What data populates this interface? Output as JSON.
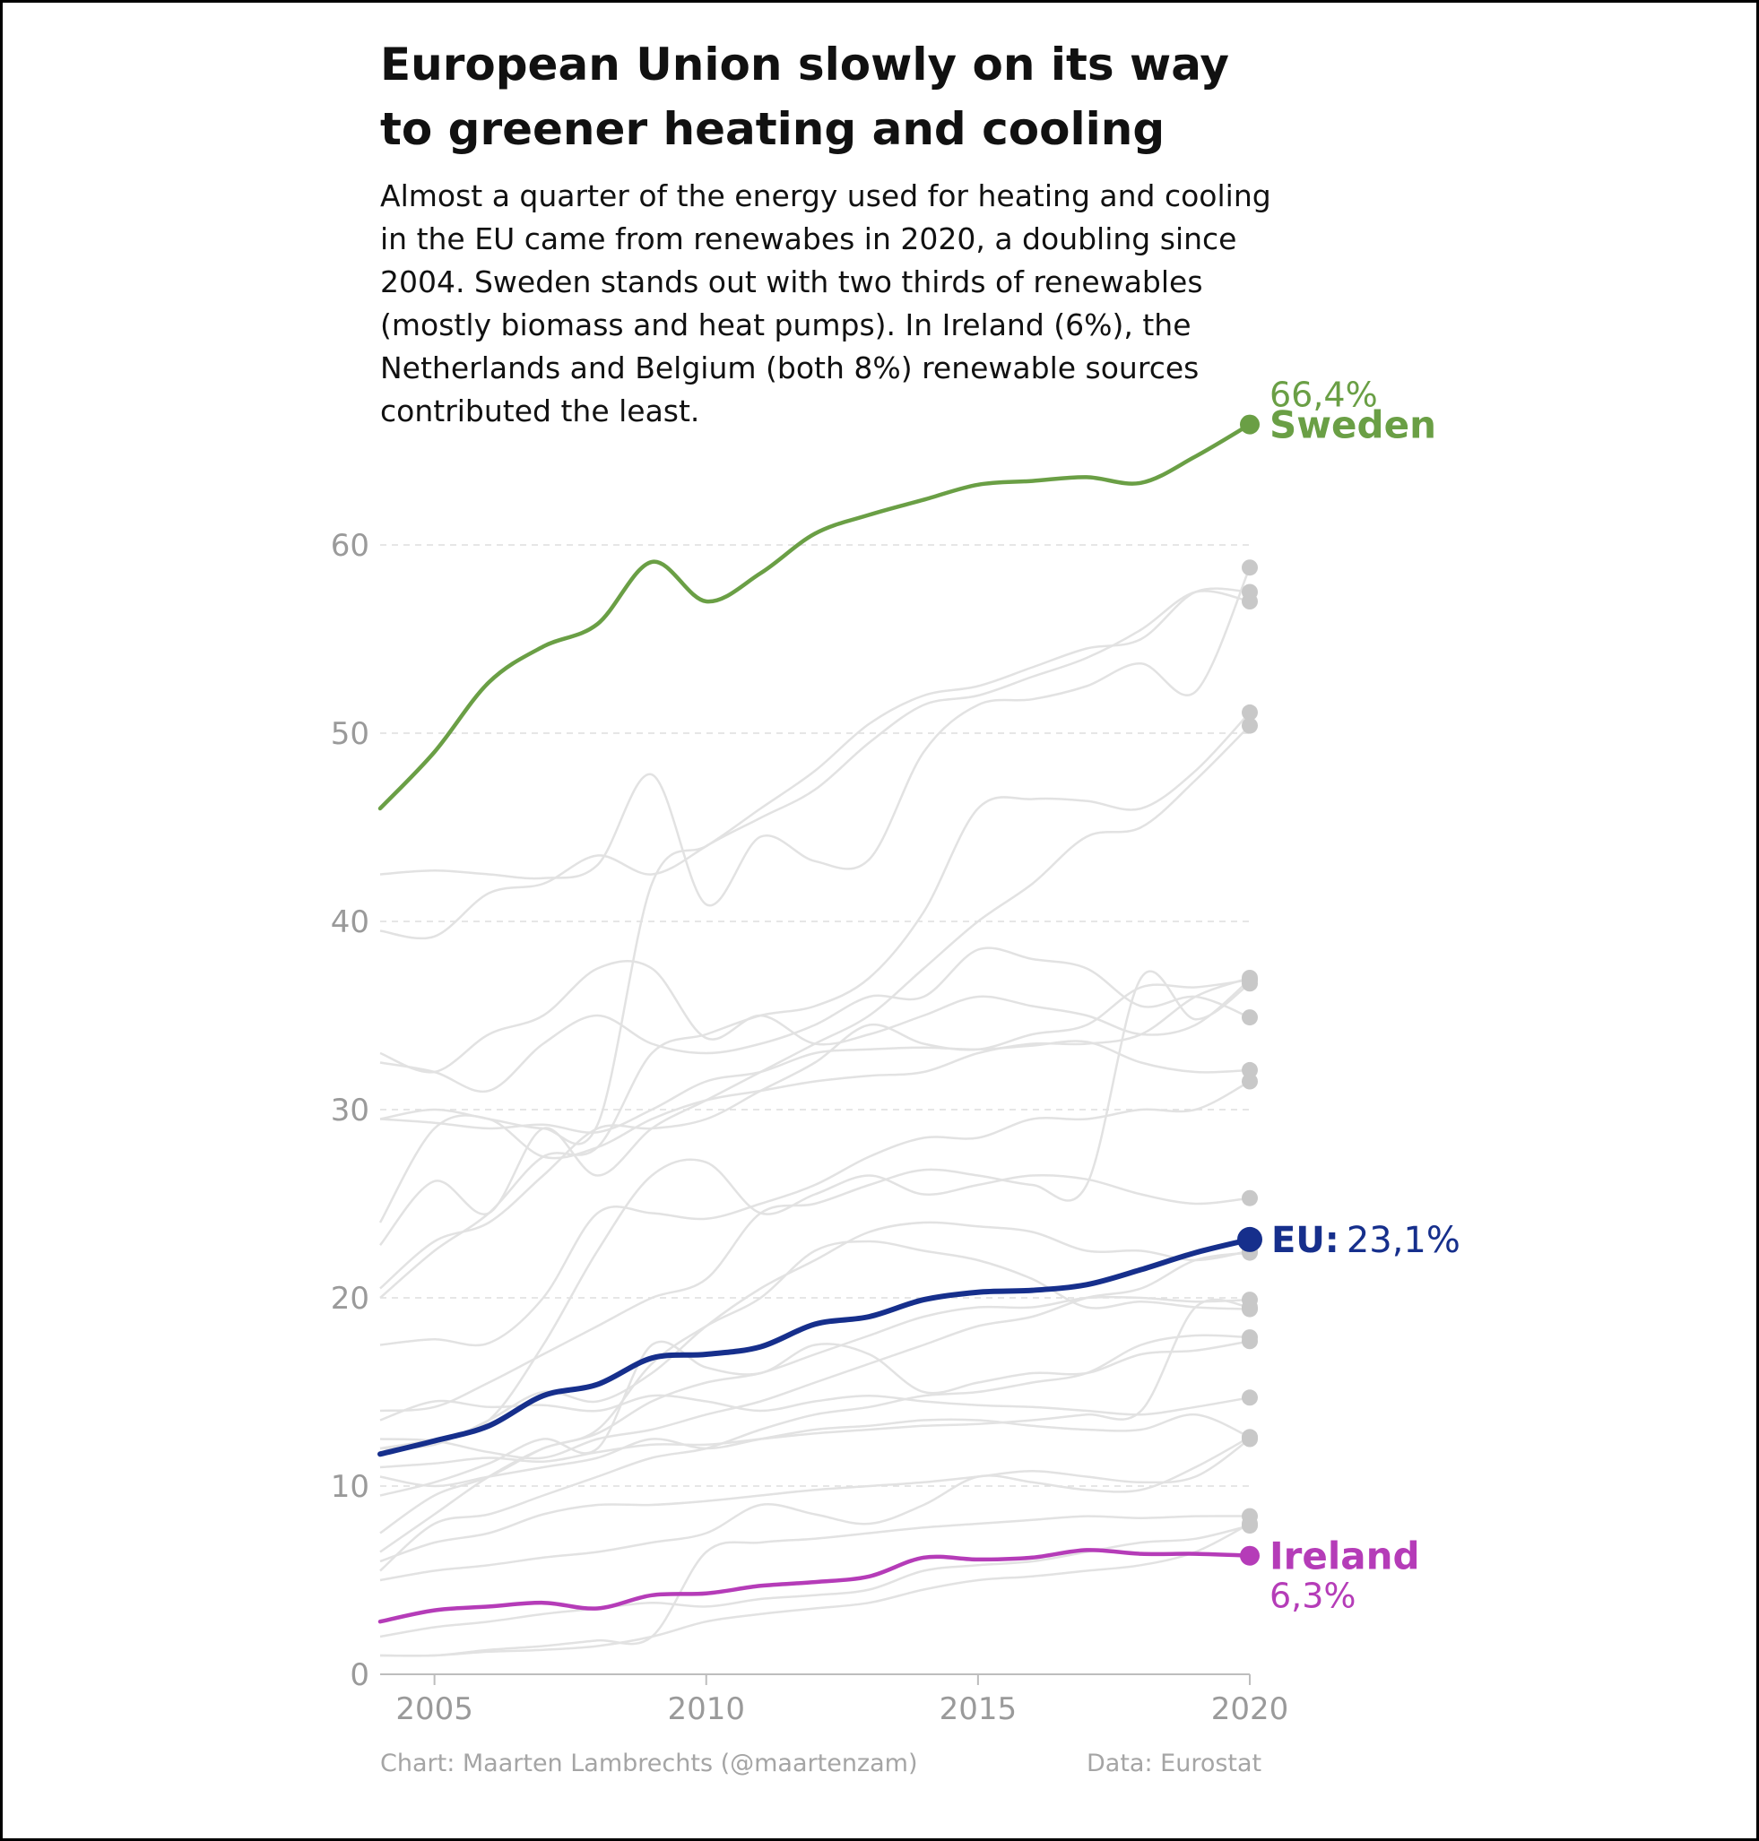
{
  "title": "European Union slowly on its way to greener heating and cooling",
  "subtitle": "Almost a quarter of the energy used for heating and cooling in the EU came from renewabes in 2020, a doubling since 2004. Sweden stands out with two thirds of renewables (mostly biomass and heat pumps). In Ireland (6%), the Netherlands and Belgium (both 8%) renewable sources contributed the least.",
  "credit": "Chart: Maarten Lambrechts (@maartenzam)",
  "source": "Data: Eurostat",
  "colors": {
    "sweden": "#6a9f45",
    "eu": "#162f8c",
    "ireland": "#b53cb8",
    "background_lines": "#e2e2e2",
    "end_dots": "#c8c8c8",
    "axis_text": "#9a9a9a",
    "grid": "#dddddd"
  },
  "chart_data": {
    "type": "line",
    "xlim": [
      2004,
      2020
    ],
    "ylim": [
      0,
      66.4
    ],
    "x_ticks": [
      "2005",
      "2010",
      "2015",
      "2020"
    ],
    "y_ticks": [
      "0",
      "10",
      "20",
      "30",
      "40",
      "50",
      "60"
    ],
    "grid": "horizontal dashed",
    "x": [
      2004,
      2005,
      2006,
      2007,
      2008,
      2009,
      2010,
      2011,
      2012,
      2013,
      2014,
      2015,
      2016,
      2017,
      2018,
      2019,
      2020
    ],
    "highlighted_series": [
      {
        "key": "sweden",
        "label": "Sweden",
        "value_label": "66,4%",
        "values": [
          46.0,
          49.0,
          52.7,
          54.6,
          55.8,
          59.1,
          57.0,
          58.5,
          60.6,
          61.6,
          62.4,
          63.2,
          63.4,
          63.6,
          63.3,
          64.7,
          66.4
        ]
      },
      {
        "key": "eu",
        "label": "EU:",
        "value_label": "23,1%",
        "values": [
          11.7,
          12.4,
          13.2,
          14.8,
          15.4,
          16.8,
          17.0,
          17.4,
          18.6,
          19.0,
          19.9,
          20.3,
          20.4,
          20.7,
          21.5,
          22.4,
          23.1
        ]
      },
      {
        "key": "ireland",
        "label": "Ireland",
        "value_label": "6,3%",
        "values": [
          2.8,
          3.4,
          3.6,
          3.8,
          3.5,
          4.2,
          4.3,
          4.7,
          4.9,
          5.2,
          6.2,
          6.1,
          6.2,
          6.6,
          6.4,
          6.4,
          6.3
        ]
      }
    ],
    "background_series": [
      [
        39.5,
        39.2,
        41.5,
        42.0,
        43.5,
        42.5,
        44.0,
        46.0,
        48.0,
        50.5,
        52.0,
        52.5,
        53.5,
        54.5,
        55.0,
        57.5,
        57.5
      ],
      [
        42.5,
        42.7,
        42.5,
        42.3,
        43.0,
        47.8,
        40.9,
        44.5,
        43.2,
        43.3,
        49.0,
        51.5,
        51.8,
        52.5,
        53.7,
        52.2,
        58.8
      ],
      [
        29.5,
        30.0,
        29.5,
        29.0,
        29.2,
        42.0,
        44.0,
        45.5,
        47.0,
        49.5,
        51.5,
        52.0,
        53.0,
        54.0,
        55.5,
        57.5,
        57.0
      ],
      [
        20.0,
        22.5,
        24.5,
        27.5,
        28.0,
        33.0,
        34.0,
        35.0,
        35.5,
        37.0,
        40.5,
        46.0,
        46.5,
        46.4,
        46.0,
        48.0,
        51.1
      ],
      [
        22.8,
        26.2,
        24.5,
        29.0,
        26.5,
        29.0,
        30.5,
        32.0,
        33.5,
        35.0,
        37.5,
        40.0,
        42.0,
        44.5,
        45.0,
        47.5,
        50.4
      ],
      [
        33.0,
        32.0,
        34.0,
        35.0,
        37.5,
        37.5,
        33.8,
        35.0,
        33.5,
        34.0,
        35.0,
        36.0,
        35.5,
        35.0,
        34.0,
        34.5,
        36.9
      ],
      [
        32.5,
        32.0,
        31.0,
        33.5,
        35.0,
        33.5,
        33.0,
        33.5,
        34.5,
        36.0,
        36.0,
        38.5,
        38.0,
        37.5,
        35.5,
        36.0,
        34.9
      ],
      [
        29.5,
        29.3,
        29.0,
        29.2,
        28.8,
        30.0,
        31.5,
        32.0,
        33.0,
        33.2,
        33.3,
        33.2,
        33.4,
        33.6,
        32.5,
        32.0,
        32.1
      ],
      [
        24.0,
        29.0,
        29.5,
        27.5,
        28.0,
        29.5,
        30.5,
        31.0,
        31.5,
        31.8,
        32.0,
        33.0,
        33.5,
        33.5,
        34.0,
        36.0,
        37.0
      ],
      [
        20.5,
        23.0,
        24.0,
        26.5,
        29.0,
        29.0,
        29.5,
        31.0,
        32.5,
        34.5,
        33.5,
        33.2,
        34.0,
        34.5,
        36.5,
        36.5,
        36.9
      ],
      [
        12.0,
        12.5,
        13.5,
        17.5,
        22.5,
        26.5,
        27.2,
        24.5,
        25.5,
        26.5,
        25.5,
        26.0,
        26.5,
        26.3,
        25.5,
        25.0,
        25.3
      ],
      [
        17.5,
        17.8,
        17.6,
        20.0,
        24.5,
        24.5,
        24.2,
        25.0,
        26.0,
        27.5,
        28.5,
        28.5,
        29.5,
        29.5,
        30.0,
        30.0,
        31.5
      ],
      [
        14.0,
        14.2,
        15.5,
        17.0,
        18.5,
        20.0,
        21.0,
        24.5,
        25.0,
        26.0,
        26.8,
        26.5,
        26.0,
        26.0,
        37.0,
        34.8,
        36.7
      ],
      [
        12.0,
        12.2,
        13.5,
        15.0,
        14.5,
        16.0,
        18.5,
        20.5,
        22.0,
        23.5,
        24.0,
        23.8,
        23.5,
        22.5,
        22.5,
        22.0,
        22.5
      ],
      [
        7.5,
        9.5,
        10.5,
        12.0,
        13.0,
        16.5,
        18.5,
        20.0,
        22.5,
        23.0,
        22.5,
        22.0,
        21.0,
        19.5,
        19.8,
        19.5,
        19.4
      ],
      [
        6.5,
        8.5,
        10.5,
        12.0,
        12.8,
        14.5,
        15.5,
        16.0,
        17.0,
        18.0,
        19.0,
        19.5,
        19.5,
        20.0,
        20.0,
        19.8,
        19.9
      ],
      [
        12.5,
        12.4,
        11.8,
        11.5,
        12.5,
        13.0,
        13.8,
        14.5,
        15.5,
        16.5,
        17.5,
        18.5,
        19.0,
        20.0,
        20.5,
        22.0,
        22.4
      ],
      [
        9.5,
        10.2,
        11.2,
        12.5,
        12.0,
        17.5,
        16.3,
        16.0,
        17.5,
        17.0,
        15.0,
        15.5,
        16.0,
        16.0,
        17.0,
        17.2,
        17.7
      ],
      [
        5.5,
        8.0,
        8.5,
        9.5,
        10.5,
        11.5,
        12.0,
        13.0,
        13.8,
        14.2,
        14.8,
        15.0,
        15.5,
        16.0,
        17.5,
        18.0,
        17.9
      ],
      [
        13.5,
        14.5,
        14.2,
        14.3,
        14.0,
        14.8,
        14.5,
        14.0,
        14.5,
        14.8,
        14.5,
        14.3,
        14.2,
        14.0,
        13.8,
        14.2,
        14.7
      ],
      [
        11.0,
        11.2,
        11.5,
        11.3,
        11.8,
        12.2,
        12.2,
        12.5,
        12.8,
        13.0,
        13.2,
        13.3,
        13.5,
        13.8,
        14.0,
        19.5,
        19.5
      ],
      [
        6.0,
        7.0,
        7.5,
        8.5,
        9.0,
        9.0,
        9.2,
        9.5,
        9.8,
        10.0,
        10.2,
        10.5,
        10.8,
        10.5,
        10.2,
        10.5,
        12.5
      ],
      [
        10.5,
        10.0,
        10.5,
        11.0,
        11.5,
        12.5,
        12.0,
        12.5,
        13.0,
        13.2,
        13.5,
        13.5,
        13.2,
        13.0,
        13.0,
        13.8,
        12.6
      ],
      [
        5.0,
        5.5,
        5.8,
        6.2,
        6.5,
        7.0,
        7.5,
        9.0,
        8.5,
        8.0,
        9.0,
        10.5,
        10.2,
        9.8,
        9.8,
        11.0,
        12.6
      ],
      [
        1.0,
        1.0,
        1.3,
        1.5,
        1.8,
        2.0,
        6.5,
        7.0,
        7.2,
        7.5,
        7.8,
        8.0,
        8.2,
        8.4,
        8.3,
        8.4,
        8.4
      ],
      [
        2.0,
        2.5,
        2.8,
        3.2,
        3.5,
        3.8,
        3.6,
        4.0,
        4.2,
        4.5,
        5.5,
        5.8,
        6.0,
        6.5,
        7.0,
        7.2,
        7.9
      ],
      [
        1.0,
        1.0,
        1.2,
        1.3,
        1.5,
        2.0,
        2.8,
        3.2,
        3.5,
        3.8,
        4.5,
        5.0,
        5.2,
        5.5,
        5.8,
        6.5,
        8.0
      ]
    ]
  }
}
